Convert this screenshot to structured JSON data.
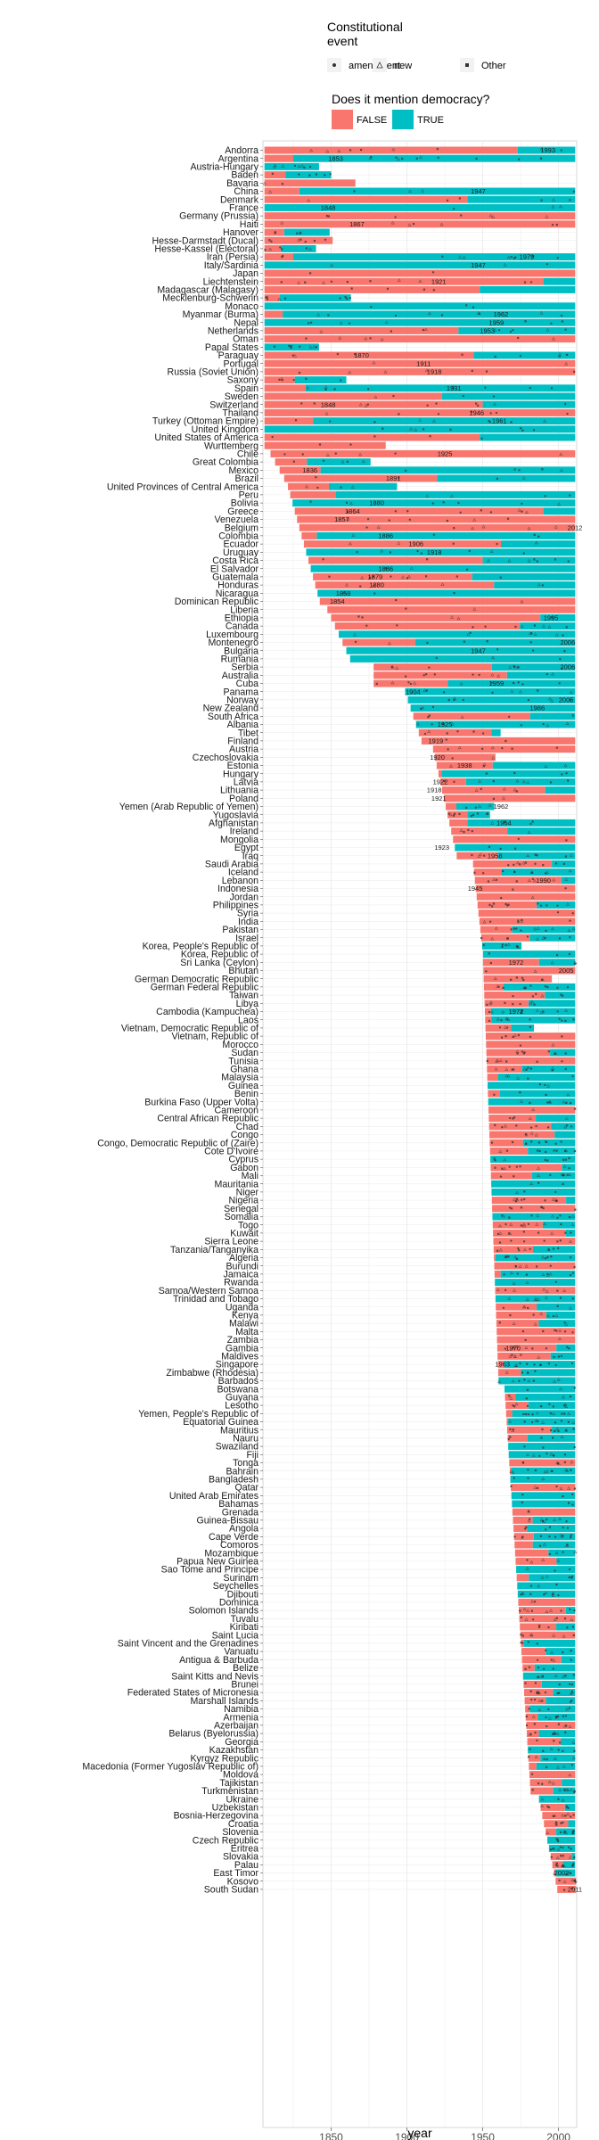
{
  "legend": {
    "event_title": "Constitutional\nevent",
    "event_items": [
      "amendment",
      "new",
      "Other"
    ],
    "democracy_title": "Does it mention democracy?",
    "democracy_items": [
      "FALSE",
      "TRUE"
    ]
  },
  "colors": {
    "false": "#F8766D",
    "true": "#00BFC4",
    "grid": "#EBEBEB",
    "point": "#333333"
  },
  "chart_data": {
    "type": "bar",
    "xlabel": "year",
    "xlim": [
      1805,
      2012
    ],
    "xticks": [
      1850,
      1900,
      1950,
      2000
    ],
    "countries": [
      "Andorra",
      "Argentina",
      "Austria-Hungary",
      "Baden",
      "Bavaria",
      "China",
      "Denmark",
      "France",
      "Germany (Prussia)",
      "Haiti",
      "Hanover",
      "Hesse-Darmstadt (Ducal)",
      "Hesse-Kassel (Electoral)",
      "Iran (Persia)",
      "Italy/Sardinia",
      "Japan",
      "Liechtenstein",
      "Madagascar (Malagasy)",
      "Mecklenburg-Schwerin",
      "Monaco",
      "Myanmar (Burma)",
      "Nepal",
      "Netherlands",
      "Oman",
      "Papal States",
      "Paraguay",
      "Portugal",
      "Russia (Soviet Union)",
      "Saxony",
      "Spain",
      "Sweden",
      "Switzerland",
      "Thailand",
      "Turkey (Ottoman Empire)",
      "United Kingdom",
      "United States of America",
      "Wurttemberg",
      "Chile",
      "Great Colombia",
      "Mexico",
      "Brazil",
      "United Provinces of Central America",
      "Peru",
      "Bolivia",
      "Greece",
      "Venezuela",
      "Belgium",
      "Colombia",
      "Ecuador",
      "Uruguay",
      "Costa Rica",
      "El Salvador",
      "Guatemala",
      "Honduras",
      "Nicaragua",
      "Dominican Republic",
      "Liberia",
      "Ethiopia",
      "Canada",
      "Luxembourg",
      "Montenegro",
      "Bulgaria",
      "Rumania",
      "Serbia",
      "Australia",
      "Cuba",
      "Panama",
      "Norway",
      "New Zealand",
      "South Africa",
      "Albania",
      "Tibet",
      "Finland",
      "Austria",
      "Czechoslovakia",
      "Estonia",
      "Hungary",
      "Latvia",
      "Lithuania",
      "Poland",
      "Yemen (Arab Republic of Yemen)",
      "Yugoslavia",
      "Afghanistan",
      "Ireland",
      "Mongolia",
      "Egypt",
      "Iraq",
      "Saudi Arabia",
      "Iceland",
      "Lebanon",
      "Indonesia",
      "Jordan",
      "Philippines",
      "Syria",
      "India",
      "Pakistan",
      "Israel",
      "Korea, People's Republic of",
      "Korea, Republic of",
      "Sri Lanka (Ceylon)",
      "Bhutan",
      "German Democratic Republic",
      "German Federal Republic",
      "Taiwan",
      "Libya",
      "Cambodia (Kampuchea)",
      "Laos",
      "Vietnam, Democratic Republic of",
      "Vietnam, Republic of",
      "Morocco",
      "Sudan",
      "Tunisia",
      "Ghana",
      "Malaysia",
      "Guinea",
      "Benin",
      "Burkina Faso (Upper Volta)",
      "Cameroon",
      "Central African Republic",
      "Chad",
      "Congo",
      "Congo, Democratic Republic of (Zaire)",
      "Cote D'Ivoire",
      "Cyprus",
      "Gabon",
      "Mali",
      "Mauritania",
      "Niger",
      "Nigeria",
      "Senegal",
      "Somalia",
      "Togo",
      "Kuwait",
      "Sierra Leone",
      "Tanzania/Tanganyika",
      "Algeria",
      "Burundi",
      "Jamaica",
      "Rwanda",
      "Samoa/Western Samoa",
      "Trinidad and Tobago",
      "Uganda",
      "Kenya",
      "Malawi",
      "Malta",
      "Zambia",
      "Gambia",
      "Maldives",
      "Singapore",
      "Zimbabwe (Rhodesia)",
      "Barbados",
      "Botswana",
      "Guyana",
      "Lesotho",
      "Yemen, People's Republic of",
      "Equatorial Guinea",
      "Mauritius",
      "Nauru",
      "Swaziland",
      "Fiji",
      "Tonga",
      "Bahrain",
      "Bangladesh",
      "Qatar",
      "United Arab Emirates",
      "Bahamas",
      "Grenada",
      "Guinea-Bissau",
      "Angola",
      "Cape Verde",
      "Comoros",
      "Mozambique",
      "Papua New Guinea",
      "Sao Tome and Principe",
      "Surinam",
      "Seychelles",
      "Djibouti",
      "Dominica",
      "Solomon Islands",
      "Tuvalu",
      "Kiribati",
      "Saint Lucia",
      "Saint Vincent and the Grenadines",
      "Vanuatu",
      "Antigua & Barbuda",
      "Belize",
      "Saint Kitts and Nevis",
      "Brunei",
      "Federated States of Micronesia",
      "Marshall Islands",
      "Namibia",
      "Armenia",
      "Azerbaijan",
      "Belarus (Byelorussia)",
      "Georgia",
      "Kazakhstan",
      "Kyrgyz Republic",
      "Macedonia (Former Yugoslav Republic of)",
      "Moldova",
      "Tajikistan",
      "Turkmenistan",
      "Ukraine",
      "Uzbekistan",
      "Bosnia-Herzegovina",
      "Croatia",
      "Slovenia",
      "Czech Republic",
      "Eritrea",
      "Slovakia",
      "Palau",
      "East Timor",
      "Kosovo",
      "South Sudan"
    ],
    "series": [
      {
        "name": "FALSE",
        "color": "#F8766D"
      },
      {
        "name": "TRUE",
        "color": "#00BFC4"
      }
    ],
    "point_labels": [
      {
        "country": "Andorra",
        "year": 1993
      },
      {
        "country": "Argentina",
        "year": 1853
      },
      {
        "country": "China",
        "year": 1947
      },
      {
        "country": "France",
        "year": 1848
      },
      {
        "country": "Haiti",
        "year": 1867
      },
      {
        "country": "Iran (Persia)",
        "year": 1979
      },
      {
        "country": "Italy/Sardinia",
        "year": 1947
      },
      {
        "country": "Liechtenstein",
        "year": 1921
      },
      {
        "country": "Myanmar (Burma)",
        "year": 1962
      },
      {
        "country": "Nepal",
        "year": 1959
      },
      {
        "country": "Netherlands",
        "year": 1953
      },
      {
        "country": "Paraguay",
        "year": 1870
      },
      {
        "country": "Portugal",
        "year": 1911
      },
      {
        "country": "Russia (Soviet Union)",
        "year": 1918
      },
      {
        "country": "Spain",
        "year": 1931
      },
      {
        "country": "Switzerland",
        "year": 1848
      },
      {
        "country": "Thailand",
        "year": 1946
      },
      {
        "country": "Turkey (Ottoman Empire)",
        "year": 1961
      },
      {
        "country": "Chile",
        "year": 1925
      },
      {
        "country": "Mexico",
        "year": 1836
      },
      {
        "country": "Brazil",
        "year": 1891
      },
      {
        "country": "Bolivia",
        "year": 1880
      },
      {
        "country": "Greece",
        "year": 1864
      },
      {
        "country": "Venezuela",
        "year": 1857
      },
      {
        "country": "Belgium",
        "year": 2012
      },
      {
        "country": "Colombia",
        "year": 1886
      },
      {
        "country": "Ecuador",
        "year": 1906
      },
      {
        "country": "Uruguay",
        "year": 1918
      },
      {
        "country": "El Salvador",
        "year": 1886
      },
      {
        "country": "Guatemala",
        "year": 1879
      },
      {
        "country": "Honduras",
        "year": 1880
      },
      {
        "country": "Nicaragua",
        "year": 1858
      },
      {
        "country": "Dominican Republic",
        "year": 1854
      },
      {
        "country": "Ethiopia",
        "year": 1995
      },
      {
        "country": "Montenegro",
        "year": 2006
      },
      {
        "country": "Bulgaria",
        "year": 1947
      },
      {
        "country": "Serbia",
        "year": 2006
      },
      {
        "country": "Cuba",
        "year": 1959
      },
      {
        "country": "Panama",
        "year": 1904
      },
      {
        "country": "Norway",
        "year": 2005
      },
      {
        "country": "New Zealand",
        "year": 1986
      },
      {
        "country": "Albania",
        "year": 1925
      },
      {
        "country": "Finland",
        "year": 1919
      },
      {
        "country": "Czechoslovakia",
        "year": 1920
      },
      {
        "country": "Estonia",
        "year": 1938
      },
      {
        "country": "Latvia",
        "year": 1922
      },
      {
        "country": "Lithuania",
        "year": 1918
      },
      {
        "country": "Poland",
        "year": 1921
      },
      {
        "country": "Yemen (Arab Republic of Yemen)",
        "year": 1962
      },
      {
        "country": "Afghanistan",
        "year": 1964
      },
      {
        "country": "Egypt",
        "year": 1923
      },
      {
        "country": "Iraq",
        "year": 1958
      },
      {
        "country": "Lebanon",
        "year": 1990
      },
      {
        "country": "Indonesia",
        "year": 1945
      },
      {
        "country": "Bhutan",
        "year": 2005
      },
      {
        "country": "Cambodia (Kampuchea)",
        "year": 1972
      },
      {
        "country": "Sri Lanka (Ceylon)",
        "year": 1972
      },
      {
        "country": "Singapore",
        "year": 1963
      },
      {
        "country": "Gambia",
        "year": 1970
      },
      {
        "country": "East Timor",
        "year": 2002
      },
      {
        "country": "South Sudan",
        "year": 2011
      }
    ]
  }
}
